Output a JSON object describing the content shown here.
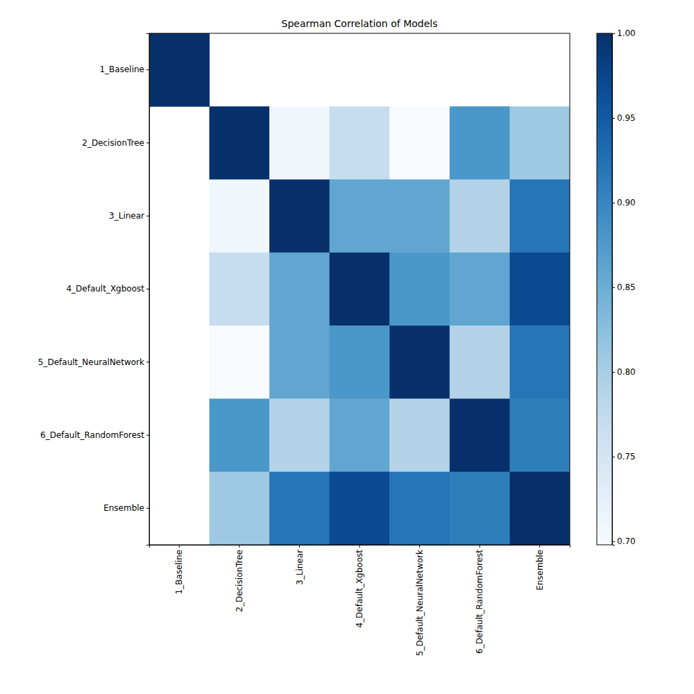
{
  "chart_data": {
    "type": "heatmap",
    "title": "Spearman Correlation of Models",
    "categories": [
      "1_Baseline",
      "2_DecisionTree",
      "3_Linear",
      "4_Default_Xgboost",
      "5_Default_NeuralNetwork",
      "6_Default_RandomForest",
      "Ensemble"
    ],
    "values": [
      [
        1.0,
        null,
        null,
        null,
        null,
        null,
        null
      ],
      [
        null,
        1.0,
        0.71,
        0.77,
        0.698,
        0.88,
        0.81
      ],
      [
        null,
        0.71,
        1.0,
        0.86,
        0.86,
        0.79,
        0.92
      ],
      [
        null,
        0.77,
        0.86,
        1.0,
        0.88,
        0.86,
        0.97
      ],
      [
        null,
        0.698,
        0.86,
        0.88,
        1.0,
        0.79,
        0.92
      ],
      [
        null,
        0.88,
        0.79,
        0.86,
        0.79,
        1.0,
        0.91
      ],
      [
        null,
        0.81,
        0.92,
        0.97,
        0.92,
        0.91,
        1.0
      ]
    ],
    "color": "Blues",
    "color_range": [
      0.698,
      1.0
    ],
    "colorbar_ticks": [
      {
        "value": 0.7,
        "label": "0.70"
      },
      {
        "value": 0.75,
        "label": "0.75"
      },
      {
        "value": 0.8,
        "label": "0.80"
      },
      {
        "value": 0.85,
        "label": "0.85"
      },
      {
        "value": 0.9,
        "label": "0.90"
      },
      {
        "value": 0.95,
        "label": "0.95"
      },
      {
        "value": 1.0,
        "label": "1.00"
      }
    ]
  }
}
